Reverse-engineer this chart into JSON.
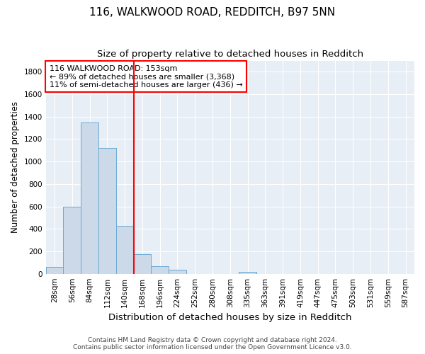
{
  "title1": "116, WALKWOOD ROAD, REDDITCH, B97 5NN",
  "title2": "Size of property relative to detached houses in Redditch",
  "xlabel": "Distribution of detached houses by size in Redditch",
  "ylabel": "Number of detached properties",
  "footer": "Contains HM Land Registry data © Crown copyright and database right 2024.\nContains public sector information licensed under the Open Government Licence v3.0.",
  "bin_labels": [
    "28sqm",
    "56sqm",
    "84sqm",
    "112sqm",
    "140sqm",
    "168sqm",
    "196sqm",
    "224sqm",
    "252sqm",
    "280sqm",
    "308sqm",
    "335sqm",
    "363sqm",
    "391sqm",
    "419sqm",
    "447sqm",
    "475sqm",
    "503sqm",
    "531sqm",
    "559sqm",
    "587sqm"
  ],
  "bar_values": [
    60,
    600,
    1350,
    1120,
    430,
    175,
    65,
    35,
    0,
    0,
    0,
    20,
    0,
    0,
    0,
    0,
    0,
    0,
    0,
    0,
    0
  ],
  "bar_color": "#ccd9e8",
  "bar_edge_color": "#6aaad4",
  "vline_x": 4.5,
  "vline_color": "red",
  "ylim": [
    0,
    1900
  ],
  "yticks": [
    0,
    200,
    400,
    600,
    800,
    1000,
    1200,
    1400,
    1600,
    1800
  ],
  "legend_text_line1": "116 WALKWOOD ROAD: 153sqm",
  "legend_text_line2": "← 89% of detached houses are smaller (3,368)",
  "legend_text_line3": "11% of semi-detached houses are larger (436) →",
  "legend_box_color": "white",
  "legend_box_edge": "red",
  "bg_color": "#e8eef5",
  "grid_color": "white",
  "title1_fontsize": 11,
  "title2_fontsize": 9.5,
  "tick_fontsize": 7.5,
  "ylabel_fontsize": 8.5,
  "xlabel_fontsize": 9.5,
  "footer_fontsize": 6.5,
  "legend_fontsize": 8
}
